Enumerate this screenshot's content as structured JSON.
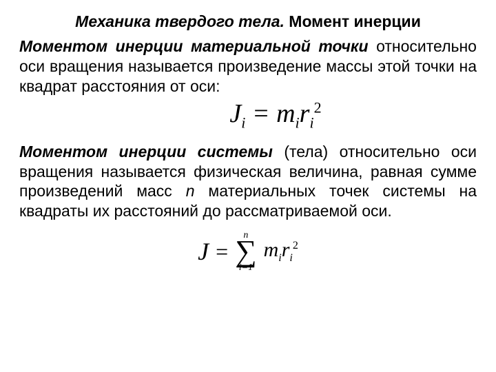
{
  "title": {
    "part1_italic": "Механика твердого тела.",
    "part2": " Момент инерции"
  },
  "para1": {
    "lead_bold_italic": "Моментом инерции материальной точки",
    "rest": " относительно оси вращения называется произведение массы этой точки на квадрат расстояния от оси:"
  },
  "formula1": {
    "J": "J",
    "i1": "i",
    "eq": " = ",
    "m": "m",
    "i2": "i",
    "r": "r",
    "i3": "i",
    "two": "2"
  },
  "para2": {
    "lead_bold_italic": "Моментом инерции системы",
    "tela": " (тела)",
    "rest1": " относительно оси вращения называется физическая величина, равная сумме произведений масс ",
    "n_italic": "n",
    "rest2": " материальных точек системы на квадраты их расстояний до рассматриваемой оси."
  },
  "formula2": {
    "J": "J",
    "eq": "=",
    "sum_top": "n",
    "sum_sym": "∑",
    "sum_bot": "i=1",
    "m": "m",
    "i1": "i",
    "r": "r",
    "i2": "i",
    "two": "2"
  }
}
